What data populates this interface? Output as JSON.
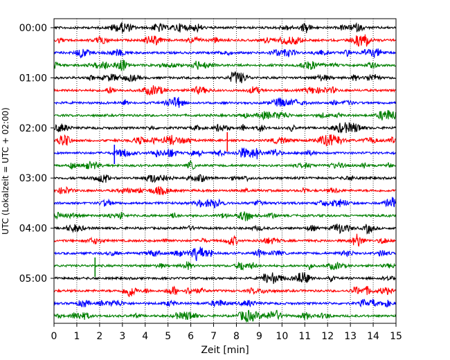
{
  "chart_data": {
    "type": "line",
    "xlabel": "Zeit  [min]",
    "ylabel": "UTC (Lokalzeit = UTC + 02:00)",
    "xlim": [
      0,
      15
    ],
    "x_ticks": [
      "0",
      "1",
      "2",
      "3",
      "4",
      "5",
      "6",
      "7",
      "8",
      "9",
      "10",
      "11",
      "12",
      "13",
      "14",
      "15"
    ],
    "y_ticks": [
      "00:00",
      "01:00",
      "02:00",
      "03:00",
      "04:00",
      "05:00"
    ],
    "trace_interval_min": 15,
    "trace_count": 24,
    "trace_colors": [
      "#000000",
      "#ff0000",
      "#0000ff",
      "#008000"
    ],
    "grid_x": "dotted",
    "series": [
      {
        "start": "00:00",
        "color": "#000000"
      },
      {
        "start": "00:15",
        "color": "#ff0000"
      },
      {
        "start": "00:30",
        "color": "#0000ff"
      },
      {
        "start": "00:45",
        "color": "#008000"
      },
      {
        "start": "01:00",
        "color": "#000000"
      },
      {
        "start": "01:15",
        "color": "#ff0000"
      },
      {
        "start": "01:30",
        "color": "#0000ff"
      },
      {
        "start": "01:45",
        "color": "#008000"
      },
      {
        "start": "02:00",
        "color": "#000000"
      },
      {
        "start": "02:15",
        "color": "#ff0000",
        "spike_min": 7.6
      },
      {
        "start": "02:30",
        "color": "#0000ff",
        "spike_min": 2.65
      },
      {
        "start": "02:45",
        "color": "#008000"
      },
      {
        "start": "03:00",
        "color": "#000000"
      },
      {
        "start": "03:15",
        "color": "#ff0000"
      },
      {
        "start": "03:30",
        "color": "#0000ff"
      },
      {
        "start": "03:45",
        "color": "#008000"
      },
      {
        "start": "04:00",
        "color": "#000000"
      },
      {
        "start": "04:15",
        "color": "#ff0000"
      },
      {
        "start": "04:30",
        "color": "#0000ff"
      },
      {
        "start": "04:45",
        "color": "#008000",
        "spike_min": 1.8
      },
      {
        "start": "05:00",
        "color": "#000000"
      },
      {
        "start": "05:15",
        "color": "#ff0000"
      },
      {
        "start": "05:30",
        "color": "#0000ff"
      },
      {
        "start": "05:45",
        "color": "#008000"
      }
    ]
  }
}
